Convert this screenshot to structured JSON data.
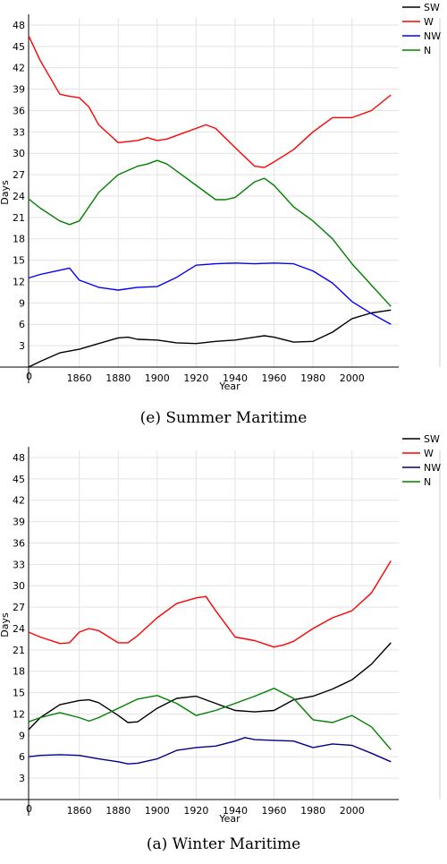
{
  "chart_data": [
    {
      "type": "line",
      "caption": "(e) Summer Maritime",
      "xlabel": "Year",
      "ylabel": "Days",
      "xlim": [
        1834,
        2024
      ],
      "ylim": [
        0,
        49
      ],
      "xticks": [
        1860,
        1880,
        1900,
        1920,
        1940,
        1960,
        1980,
        2000
      ],
      "yticks": [
        0,
        3,
        6,
        9,
        12,
        15,
        18,
        21,
        24,
        27,
        30,
        33,
        36,
        39,
        42,
        45,
        48
      ],
      "grid": true,
      "legend": "top-right",
      "colors": {
        "SW": "#000000",
        "W": "#ff0000",
        "NW": "#0000ff",
        "N": "#008000"
      },
      "series": [
        {
          "name": "SW",
          "x": [
            1834,
            1840,
            1850,
            1860,
            1870,
            1880,
            1885,
            1890,
            1900,
            1910,
            1920,
            1930,
            1940,
            1950,
            1955,
            1960,
            1970,
            1980,
            1990,
            2000,
            2010,
            2020
          ],
          "values": [
            0,
            0.8,
            2.0,
            2.5,
            3.3,
            4.1,
            4.2,
            3.9,
            3.8,
            3.4,
            3.3,
            3.6,
            3.8,
            4.2,
            4.4,
            4.2,
            3.5,
            3.6,
            4.9,
            6.8,
            7.6,
            8.0
          ]
        },
        {
          "name": "W",
          "x": [
            1834,
            1840,
            1850,
            1855,
            1860,
            1865,
            1870,
            1880,
            1890,
            1895,
            1900,
            1905,
            1910,
            1920,
            1925,
            1930,
            1940,
            1950,
            1955,
            1960,
            1970,
            1980,
            1990,
            2000,
            2010,
            2020
          ],
          "values": [
            46.5,
            43.0,
            38.3,
            38.0,
            37.8,
            36.5,
            34.0,
            31.5,
            31.8,
            32.2,
            31.8,
            32.0,
            32.5,
            33.5,
            34.0,
            33.5,
            30.8,
            28.2,
            28.0,
            28.8,
            30.5,
            33.0,
            35.0,
            35.0,
            36.0,
            38.2
          ]
        },
        {
          "name": "NW",
          "x": [
            1834,
            1840,
            1850,
            1855,
            1860,
            1870,
            1880,
            1890,
            1900,
            1910,
            1920,
            1930,
            1940,
            1950,
            1960,
            1970,
            1980,
            1990,
            2000,
            2010,
            2020
          ],
          "values": [
            12.5,
            13.0,
            13.6,
            13.9,
            12.2,
            11.2,
            10.8,
            11.2,
            11.3,
            12.6,
            14.3,
            14.5,
            14.6,
            14.5,
            14.6,
            14.5,
            13.5,
            11.8,
            9.2,
            7.5,
            6.0
          ]
        },
        {
          "name": "N",
          "x": [
            1834,
            1840,
            1850,
            1855,
            1860,
            1870,
            1880,
            1890,
            1895,
            1900,
            1905,
            1910,
            1920,
            1930,
            1935,
            1940,
            1950,
            1955,
            1960,
            1970,
            1980,
            1990,
            2000,
            2010,
            2020
          ],
          "values": [
            23.6,
            22.3,
            20.5,
            20.0,
            20.5,
            24.5,
            27.0,
            28.2,
            28.5,
            29.0,
            28.5,
            27.5,
            25.5,
            23.5,
            23.5,
            23.8,
            26.0,
            26.5,
            25.5,
            22.5,
            20.5,
            18.0,
            14.5,
            11.5,
            8.5
          ]
        }
      ]
    },
    {
      "type": "line",
      "caption": "(a) Winter Maritime",
      "xlabel": "Year",
      "ylabel": "Days",
      "xlim": [
        1834,
        2024
      ],
      "ylim": [
        0,
        49
      ],
      "xticks": [
        1860,
        1880,
        1900,
        1920,
        1940,
        1960,
        1980,
        2000
      ],
      "yticks": [
        0,
        3,
        6,
        9,
        12,
        15,
        18,
        21,
        24,
        27,
        30,
        33,
        36,
        39,
        42,
        45,
        48
      ],
      "grid": true,
      "legend": "top-right",
      "colors": {
        "SW": "#000000",
        "W": "#ff0000",
        "NW": "#00008b",
        "N": "#008000"
      },
      "series": [
        {
          "name": "SW",
          "x": [
            1834,
            1840,
            1850,
            1860,
            1865,
            1870,
            1880,
            1885,
            1890,
            1900,
            1910,
            1920,
            1930,
            1940,
            1950,
            1960,
            1970,
            1980,
            1990,
            2000,
            2010,
            2020
          ],
          "values": [
            9.8,
            11.5,
            13.3,
            13.9,
            14.0,
            13.6,
            11.8,
            10.8,
            10.9,
            12.8,
            14.2,
            14.5,
            13.5,
            12.5,
            12.3,
            12.5,
            14.0,
            14.5,
            15.5,
            16.8,
            19.0,
            22.0
          ]
        },
        {
          "name": "W",
          "x": [
            1834,
            1840,
            1850,
            1855,
            1860,
            1865,
            1870,
            1880,
            1885,
            1890,
            1900,
            1910,
            1920,
            1925,
            1930,
            1940,
            1950,
            1960,
            1965,
            1970,
            1980,
            1990,
            2000,
            2010,
            2020
          ],
          "values": [
            23.5,
            22.8,
            21.9,
            22.0,
            23.5,
            24.0,
            23.7,
            22.0,
            22.0,
            23.0,
            25.5,
            27.5,
            28.3,
            28.5,
            26.5,
            22.8,
            22.3,
            21.4,
            21.7,
            22.2,
            24.0,
            25.5,
            26.5,
            29.0,
            33.5
          ]
        },
        {
          "name": "NW",
          "x": [
            1834,
            1840,
            1850,
            1860,
            1870,
            1880,
            1885,
            1890,
            1900,
            1910,
            1920,
            1930,
            1940,
            1945,
            1950,
            1960,
            1970,
            1980,
            1990,
            2000,
            2010,
            2020
          ],
          "values": [
            6.0,
            6.2,
            6.3,
            6.2,
            5.7,
            5.3,
            5.0,
            5.1,
            5.7,
            6.9,
            7.3,
            7.5,
            8.2,
            8.7,
            8.4,
            8.3,
            8.2,
            7.3,
            7.8,
            7.6,
            6.5,
            5.3
          ]
        },
        {
          "name": "N",
          "x": [
            1834,
            1840,
            1850,
            1860,
            1865,
            1870,
            1880,
            1890,
            1900,
            1910,
            1920,
            1930,
            1940,
            1950,
            1960,
            1970,
            1980,
            1990,
            2000,
            2010,
            2020
          ],
          "values": [
            10.9,
            11.5,
            12.2,
            11.5,
            11.0,
            11.5,
            12.8,
            14.1,
            14.6,
            13.5,
            11.8,
            12.5,
            13.5,
            14.5,
            15.6,
            14.2,
            11.2,
            10.8,
            11.8,
            10.2,
            7.0
          ]
        }
      ]
    }
  ]
}
